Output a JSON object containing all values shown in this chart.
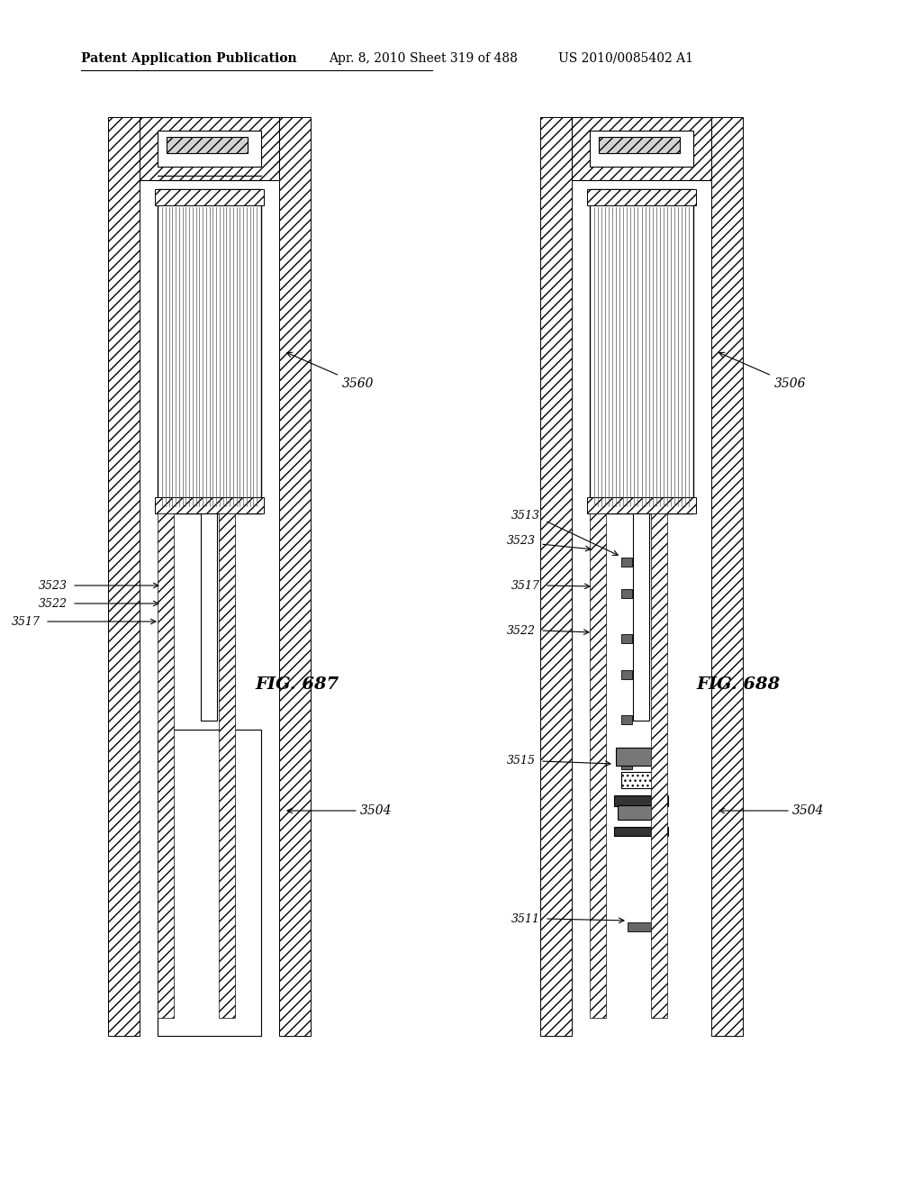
{
  "bg_color": "#ffffff",
  "header_text": "Patent Application Publication",
  "header_date": "Apr. 8, 2010",
  "header_sheet": "Sheet 319 of 488",
  "header_patent": "US 2010/0085402 A1",
  "fig1_label": "FIG. 687",
  "fig2_label": "FIG. 688",
  "label_color": "#000000",
  "hatch_color": "#000000",
  "line_color": "#000000"
}
